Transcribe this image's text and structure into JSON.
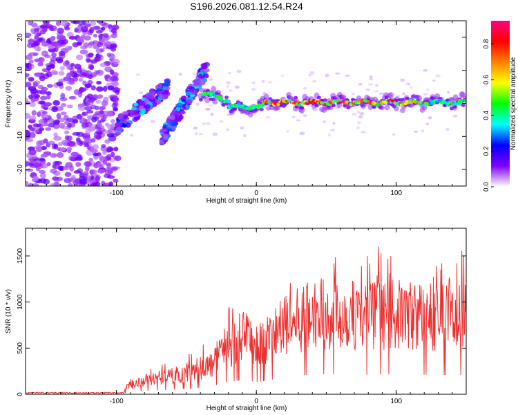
{
  "title": "S196.2026.081.12.54.R24",
  "chart_data": [
    {
      "type": "heatmap",
      "xlabel": "Height of straight line (km)",
      "ylabel": "Frequency (Hz)",
      "xlim": [
        -165,
        150
      ],
      "ylim": [
        -25,
        25
      ],
      "xticks": [
        -100,
        0,
        100
      ],
      "yticks": [
        -20,
        -10,
        0,
        10,
        20
      ],
      "colorbar": {
        "label": "Normalized spectral amplitude",
        "range": [
          0,
          0.93
        ],
        "ticks": [
          0.0,
          0.2,
          0.4,
          0.6,
          0.8
        ],
        "colors": [
          "#ffffff",
          "#8000ff",
          "#0000ff",
          "#00ffff",
          "#00ff00",
          "#ffff00",
          "#ff8000",
          "#ff0000",
          "#ff0080"
        ]
      },
      "features": [
        {
          "name": "noise region",
          "x_range": [
            -165,
            -100
          ],
          "freq_range": [
            -25,
            25
          ],
          "amplitude": 0.1
        },
        {
          "name": "rising chirp 1",
          "x_range": [
            -100,
            -62
          ],
          "freq_range": [
            -7,
            5
          ],
          "amplitude": 0.3
        },
        {
          "name": "rising chirp 2",
          "x_range": [
            -68,
            -35
          ],
          "freq_range": [
            -11,
            11
          ],
          "amplitude": 0.3
        },
        {
          "name": "steady signal",
          "x_range": [
            -40,
            150
          ],
          "freq_center": 0,
          "amplitude": 0.9
        }
      ]
    },
    {
      "type": "line",
      "xlabel": "Height of straight line (km)",
      "ylabel": "SNR (10 * v/v)",
      "xlim": [
        -165,
        150
      ],
      "ylim": [
        0,
        1800
      ],
      "xticks": [
        -100,
        0,
        100
      ],
      "yticks": [
        0,
        500,
        1000,
        1500
      ],
      "line_color": "#ee3030",
      "envelope": {
        "x": [
          -165,
          -100,
          -80,
          -65,
          -60,
          -45,
          -30,
          -25,
          -20,
          -10,
          0,
          20,
          40,
          60,
          80,
          100,
          120,
          150
        ],
        "y": [
          10,
          20,
          150,
          180,
          200,
          260,
          330,
          580,
          500,
          650,
          520,
          730,
          870,
          870,
          850,
          860,
          850,
          830
        ]
      }
    }
  ]
}
